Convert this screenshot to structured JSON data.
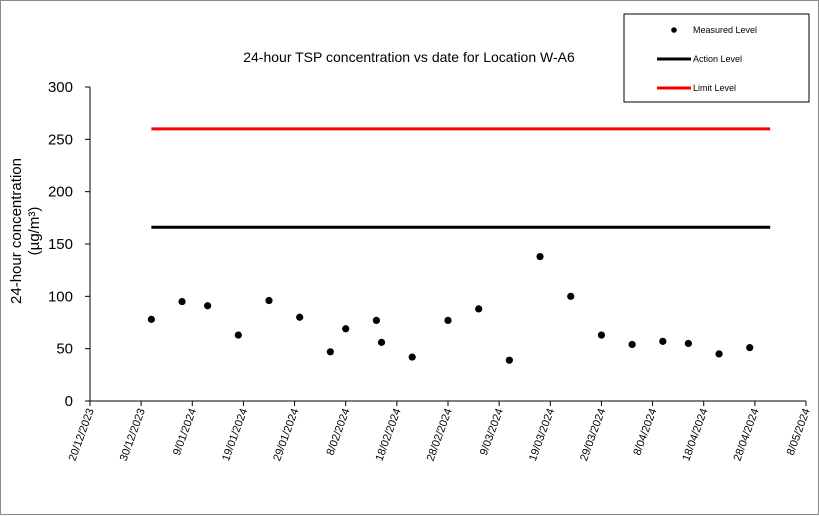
{
  "chart_data": {
    "type": "scatter",
    "title": "24-hour TSP concentration vs date for Location W-A6",
    "ylabel_line1": "24-hour concentration",
    "ylabel_line2": "(µg/m³)",
    "xlabel": "",
    "ylim": [
      0,
      300
    ],
    "yticks": [
      "0",
      "50",
      "100",
      "150",
      "200",
      "250",
      "300"
    ],
    "xticks": [
      "20/12/2023",
      "30/12/2023",
      "9/01/2024",
      "19/01/2024",
      "29/01/2024",
      "8/02/2024",
      "18/02/2024",
      "28/02/2024",
      "9/03/2024",
      "19/03/2024",
      "29/03/2024",
      "8/04/2024",
      "18/04/2024",
      "28/04/2024",
      "8/05/2024"
    ],
    "xlim": [
      "2023-12-20",
      "2024-05-08"
    ],
    "grid": false,
    "legend_position": "top-right",
    "series": [
      {
        "name": "Measured Level",
        "kind": "points",
        "color": "#000000",
        "points": [
          {
            "x": "2024-01-01",
            "y": 78
          },
          {
            "x": "2024-01-07",
            "y": 95
          },
          {
            "x": "2024-01-12",
            "y": 91
          },
          {
            "x": "2024-01-18",
            "y": 63
          },
          {
            "x": "2024-01-24",
            "y": 96
          },
          {
            "x": "2024-01-30",
            "y": 80
          },
          {
            "x": "2024-02-05",
            "y": 47
          },
          {
            "x": "2024-02-08",
            "y": 69
          },
          {
            "x": "2024-02-14",
            "y": 77
          },
          {
            "x": "2024-02-15",
            "y": 56
          },
          {
            "x": "2024-02-21",
            "y": 42
          },
          {
            "x": "2024-02-28",
            "y": 77
          },
          {
            "x": "2024-03-05",
            "y": 88
          },
          {
            "x": "2024-03-11",
            "y": 39
          },
          {
            "x": "2024-03-17",
            "y": 138
          },
          {
            "x": "2024-03-23",
            "y": 100
          },
          {
            "x": "2024-03-29",
            "y": 63
          },
          {
            "x": "2024-04-04",
            "y": 54
          },
          {
            "x": "2024-04-10",
            "y": 57
          },
          {
            "x": "2024-04-15",
            "y": 55
          },
          {
            "x": "2024-04-21",
            "y": 45
          },
          {
            "x": "2024-04-27",
            "y": 51
          }
        ]
      },
      {
        "name": "Action Level",
        "kind": "line",
        "color": "#000000",
        "x": [
          "2024-01-01",
          "2024-05-01"
        ],
        "y": [
          166,
          166
        ]
      },
      {
        "name": "Limit Level",
        "kind": "line",
        "color": "#ff0000",
        "x": [
          "2024-01-01",
          "2024-05-01"
        ],
        "y": [
          260,
          260
        ]
      }
    ]
  }
}
